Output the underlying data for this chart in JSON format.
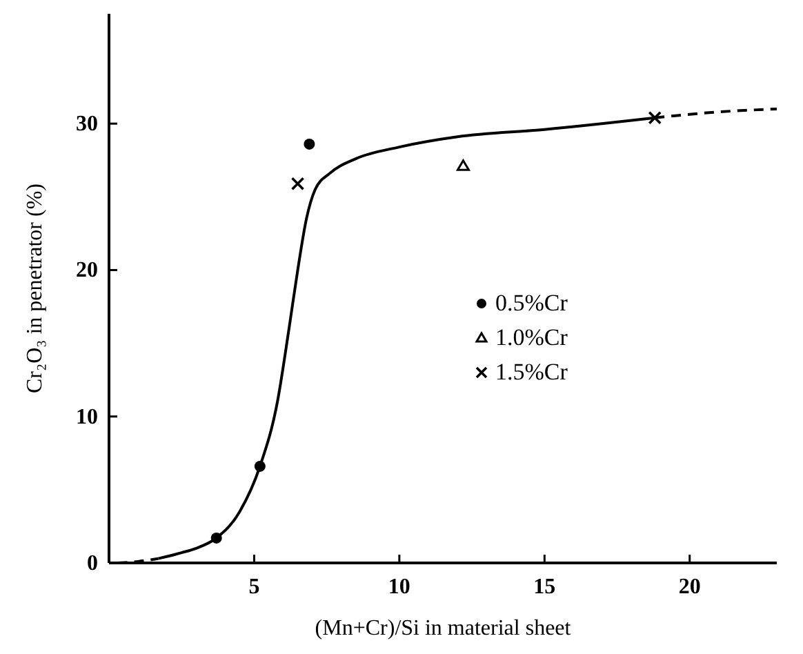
{
  "chart_data": {
    "type": "scatter",
    "xlabel": "(Mn+Cr)/Si in material sheet",
    "ylabel": "Cr₂O₃ in penetrator (%)",
    "xlim": [
      0,
      23
    ],
    "ylim": [
      0,
      37.5
    ],
    "xticks": [
      {
        "value": 0,
        "label": null
      },
      5,
      10,
      15,
      20
    ],
    "yticks": [
      0,
      10,
      20,
      30
    ],
    "grid": false,
    "legend": "center right",
    "series": [
      {
        "type": "line",
        "color": "#000000",
        "line_style": "dashed",
        "marker": "none",
        "x": [
          0.3,
          1,
          1.7
        ],
        "values": [
          0,
          0.1,
          0.3
        ]
      },
      {
        "type": "line",
        "color": "#000000",
        "line_style": "solid",
        "marker": "none",
        "x": [
          1.7,
          2.5,
          3,
          3.7,
          4.5,
          5.2,
          5.8,
          6.2,
          6.5,
          6.8,
          7.1,
          7.6,
          8.5,
          10,
          12,
          15,
          18.8
        ],
        "values": [
          0.3,
          0.7,
          1,
          1.7,
          3.5,
          6.6,
          11,
          16,
          20,
          23.5,
          25.5,
          26.6,
          27.6,
          28.4,
          29.1,
          29.6,
          30.4
        ]
      },
      {
        "type": "line",
        "color": "#000000",
        "line_style": "dashed",
        "marker": "none",
        "x": [
          18.8,
          21,
          23
        ],
        "values": [
          30.4,
          30.8,
          31
        ]
      },
      {
        "name": "0.5%Cr",
        "color": "#000000",
        "marker": "circle",
        "x": [
          6.9,
          5.2,
          3.7
        ],
        "values": [
          28.6,
          6.6,
          1.7
        ]
      },
      {
        "name": "1.0%Cr",
        "color": "#000000",
        "marker": "triangle",
        "x": [
          12.2
        ],
        "values": [
          27.1
        ]
      },
      {
        "name": "1.5%Cr",
        "color": "#000000",
        "marker": "cross",
        "x": [
          6.5,
          18.8
        ],
        "values": [
          25.9,
          30.4
        ]
      }
    ]
  }
}
